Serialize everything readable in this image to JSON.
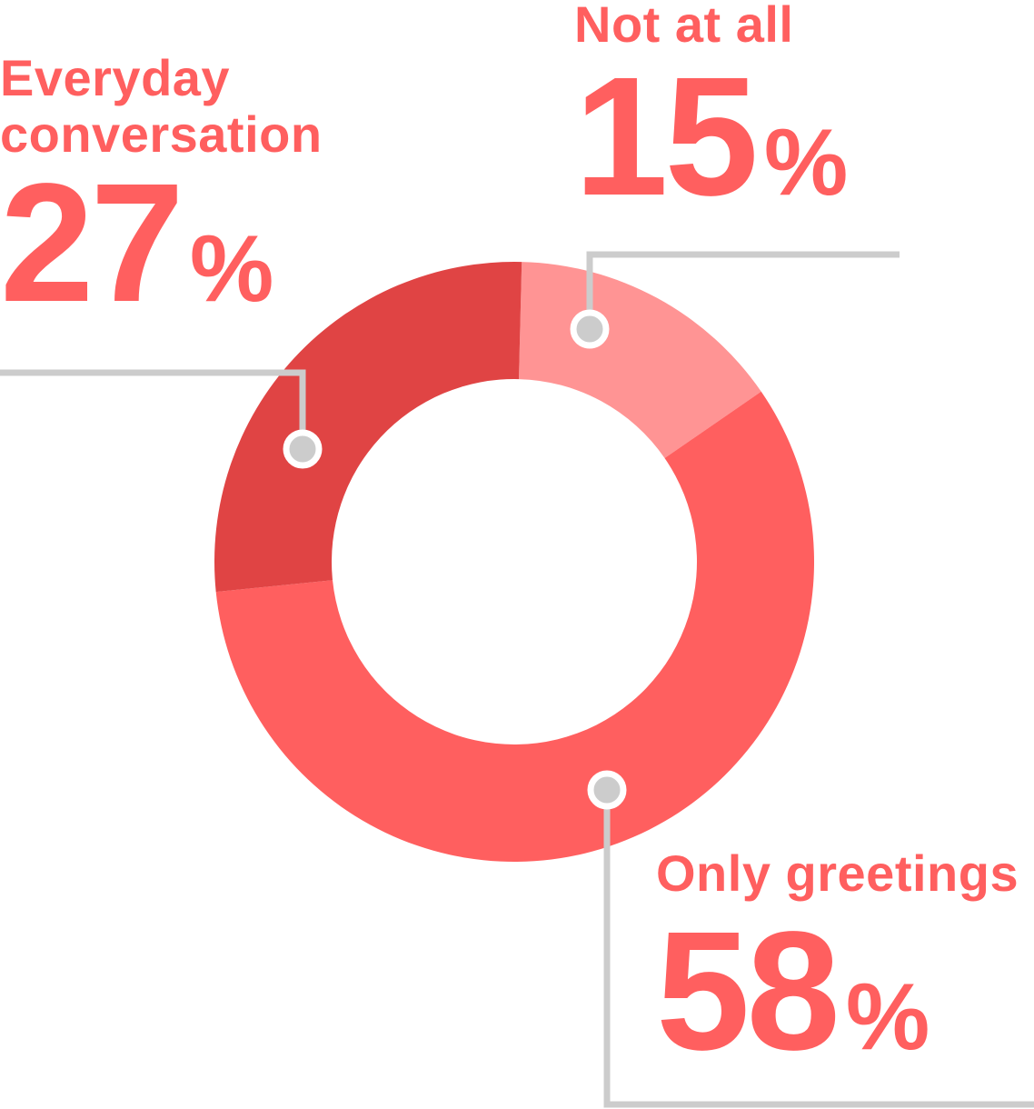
{
  "chart_data": {
    "type": "pie",
    "variant": "donut",
    "title": "",
    "slices": [
      {
        "label": "Not at all",
        "value": 15,
        "display": "15",
        "unit": "%",
        "color": "#ff9494"
      },
      {
        "label": "Only greetings",
        "value": 58,
        "display": "58",
        "unit": "%",
        "color": "#ff5f5f"
      },
      {
        "label": "Everyday conversation",
        "value": 27,
        "display": "27",
        "unit": "%",
        "color": "#e04444"
      }
    ],
    "label_color": "#ff5f5f",
    "leader_line_color": "#cccccc"
  }
}
